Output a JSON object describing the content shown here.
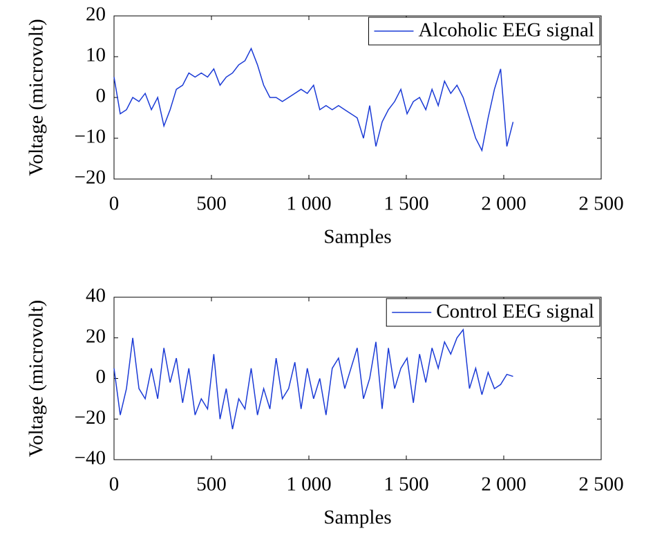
{
  "chart_data": [
    {
      "type": "line",
      "xlabel": "Samples",
      "ylabel": "Voltage (microvolt)",
      "xlim": [
        0,
        2500
      ],
      "ylim": [
        -20,
        20
      ],
      "xticks": [
        0,
        500,
        {
          "value": 1000,
          "label": "1 000"
        },
        {
          "value": 1500,
          "label": "1 500"
        },
        {
          "value": 2000,
          "label": "2 000"
        },
        {
          "value": 2500,
          "label": "2 500"
        }
      ],
      "yticks": [
        {
          "value": -20,
          "label": "−20"
        },
        {
          "value": -10,
          "label": "−10"
        },
        0,
        10,
        20
      ],
      "legend": "upper right",
      "x": [
        0,
        32,
        64,
        96,
        128,
        160,
        192,
        224,
        256,
        288,
        320,
        352,
        384,
        416,
        448,
        480,
        512,
        544,
        576,
        608,
        640,
        672,
        704,
        736,
        768,
        800,
        832,
        864,
        896,
        928,
        960,
        992,
        1024,
        1056,
        1088,
        1120,
        1152,
        1184,
        1216,
        1248,
        1280,
        1312,
        1344,
        1376,
        1408,
        1440,
        1472,
        1504,
        1536,
        1568,
        1600,
        1632,
        1664,
        1696,
        1728,
        1760,
        1792,
        1824,
        1856,
        1888,
        1920,
        1952,
        1984,
        2016,
        2048
      ],
      "series": [
        {
          "name": "Alcoholic EEG signal",
          "color": "#1a3ad6",
          "values": [
            5,
            -4,
            -3,
            0,
            -1,
            1,
            -3,
            0,
            -7,
            -3,
            2,
            3,
            6,
            5,
            6,
            5,
            7,
            3,
            5,
            6,
            8,
            9,
            12,
            8,
            3,
            0,
            0,
            -1,
            0,
            1,
            2,
            1,
            3,
            -3,
            -2,
            -3,
            -2,
            -3,
            -4,
            -5,
            -10,
            -2,
            -12,
            -6,
            -3,
            -1,
            2,
            -4,
            -1,
            0,
            -3,
            2,
            -2,
            4,
            1,
            3,
            0,
            -5,
            -10,
            -13,
            -5,
            2,
            7,
            -12,
            -6
          ]
        }
      ]
    },
    {
      "type": "line",
      "xlabel": "Samples",
      "ylabel": "Voltage (microvolt)",
      "xlim": [
        0,
        2500
      ],
      "ylim": [
        -40,
        40
      ],
      "xticks": [
        0,
        500,
        {
          "value": 1000,
          "label": "1 000"
        },
        {
          "value": 1500,
          "label": "1 500"
        },
        {
          "value": 2000,
          "label": "2 000"
        },
        {
          "value": 2500,
          "label": "2 500"
        }
      ],
      "yticks": [
        {
          "value": -40,
          "label": "−40"
        },
        {
          "value": -20,
          "label": "−20"
        },
        0,
        20,
        40
      ],
      "legend": "upper right",
      "x": [
        0,
        32,
        64,
        96,
        128,
        160,
        192,
        224,
        256,
        288,
        320,
        352,
        384,
        416,
        448,
        480,
        512,
        544,
        576,
        608,
        640,
        672,
        704,
        736,
        768,
        800,
        832,
        864,
        896,
        928,
        960,
        992,
        1024,
        1056,
        1088,
        1120,
        1152,
        1184,
        1216,
        1248,
        1280,
        1312,
        1344,
        1376,
        1408,
        1440,
        1472,
        1504,
        1536,
        1568,
        1600,
        1632,
        1664,
        1696,
        1728,
        1760,
        1792,
        1824,
        1856,
        1888,
        1920,
        1952,
        1984,
        2016,
        2048
      ],
      "series": [
        {
          "name": "Control EEG signal",
          "color": "#1a3ad6",
          "values": [
            5,
            -18,
            -5,
            20,
            -5,
            -10,
            5,
            -10,
            15,
            -2,
            10,
            -12,
            5,
            -18,
            -10,
            -15,
            12,
            -20,
            -5,
            -25,
            -10,
            -15,
            5,
            -18,
            -5,
            -15,
            10,
            -10,
            -5,
            8,
            -15,
            5,
            -10,
            0,
            -18,
            5,
            10,
            -5,
            5,
            15,
            -10,
            0,
            18,
            -15,
            15,
            -5,
            5,
            10,
            -12,
            12,
            -2,
            15,
            5,
            18,
            12,
            20,
            24,
            -5,
            5,
            -8,
            3,
            -5,
            -3,
            2,
            1
          ]
        }
      ]
    }
  ]
}
